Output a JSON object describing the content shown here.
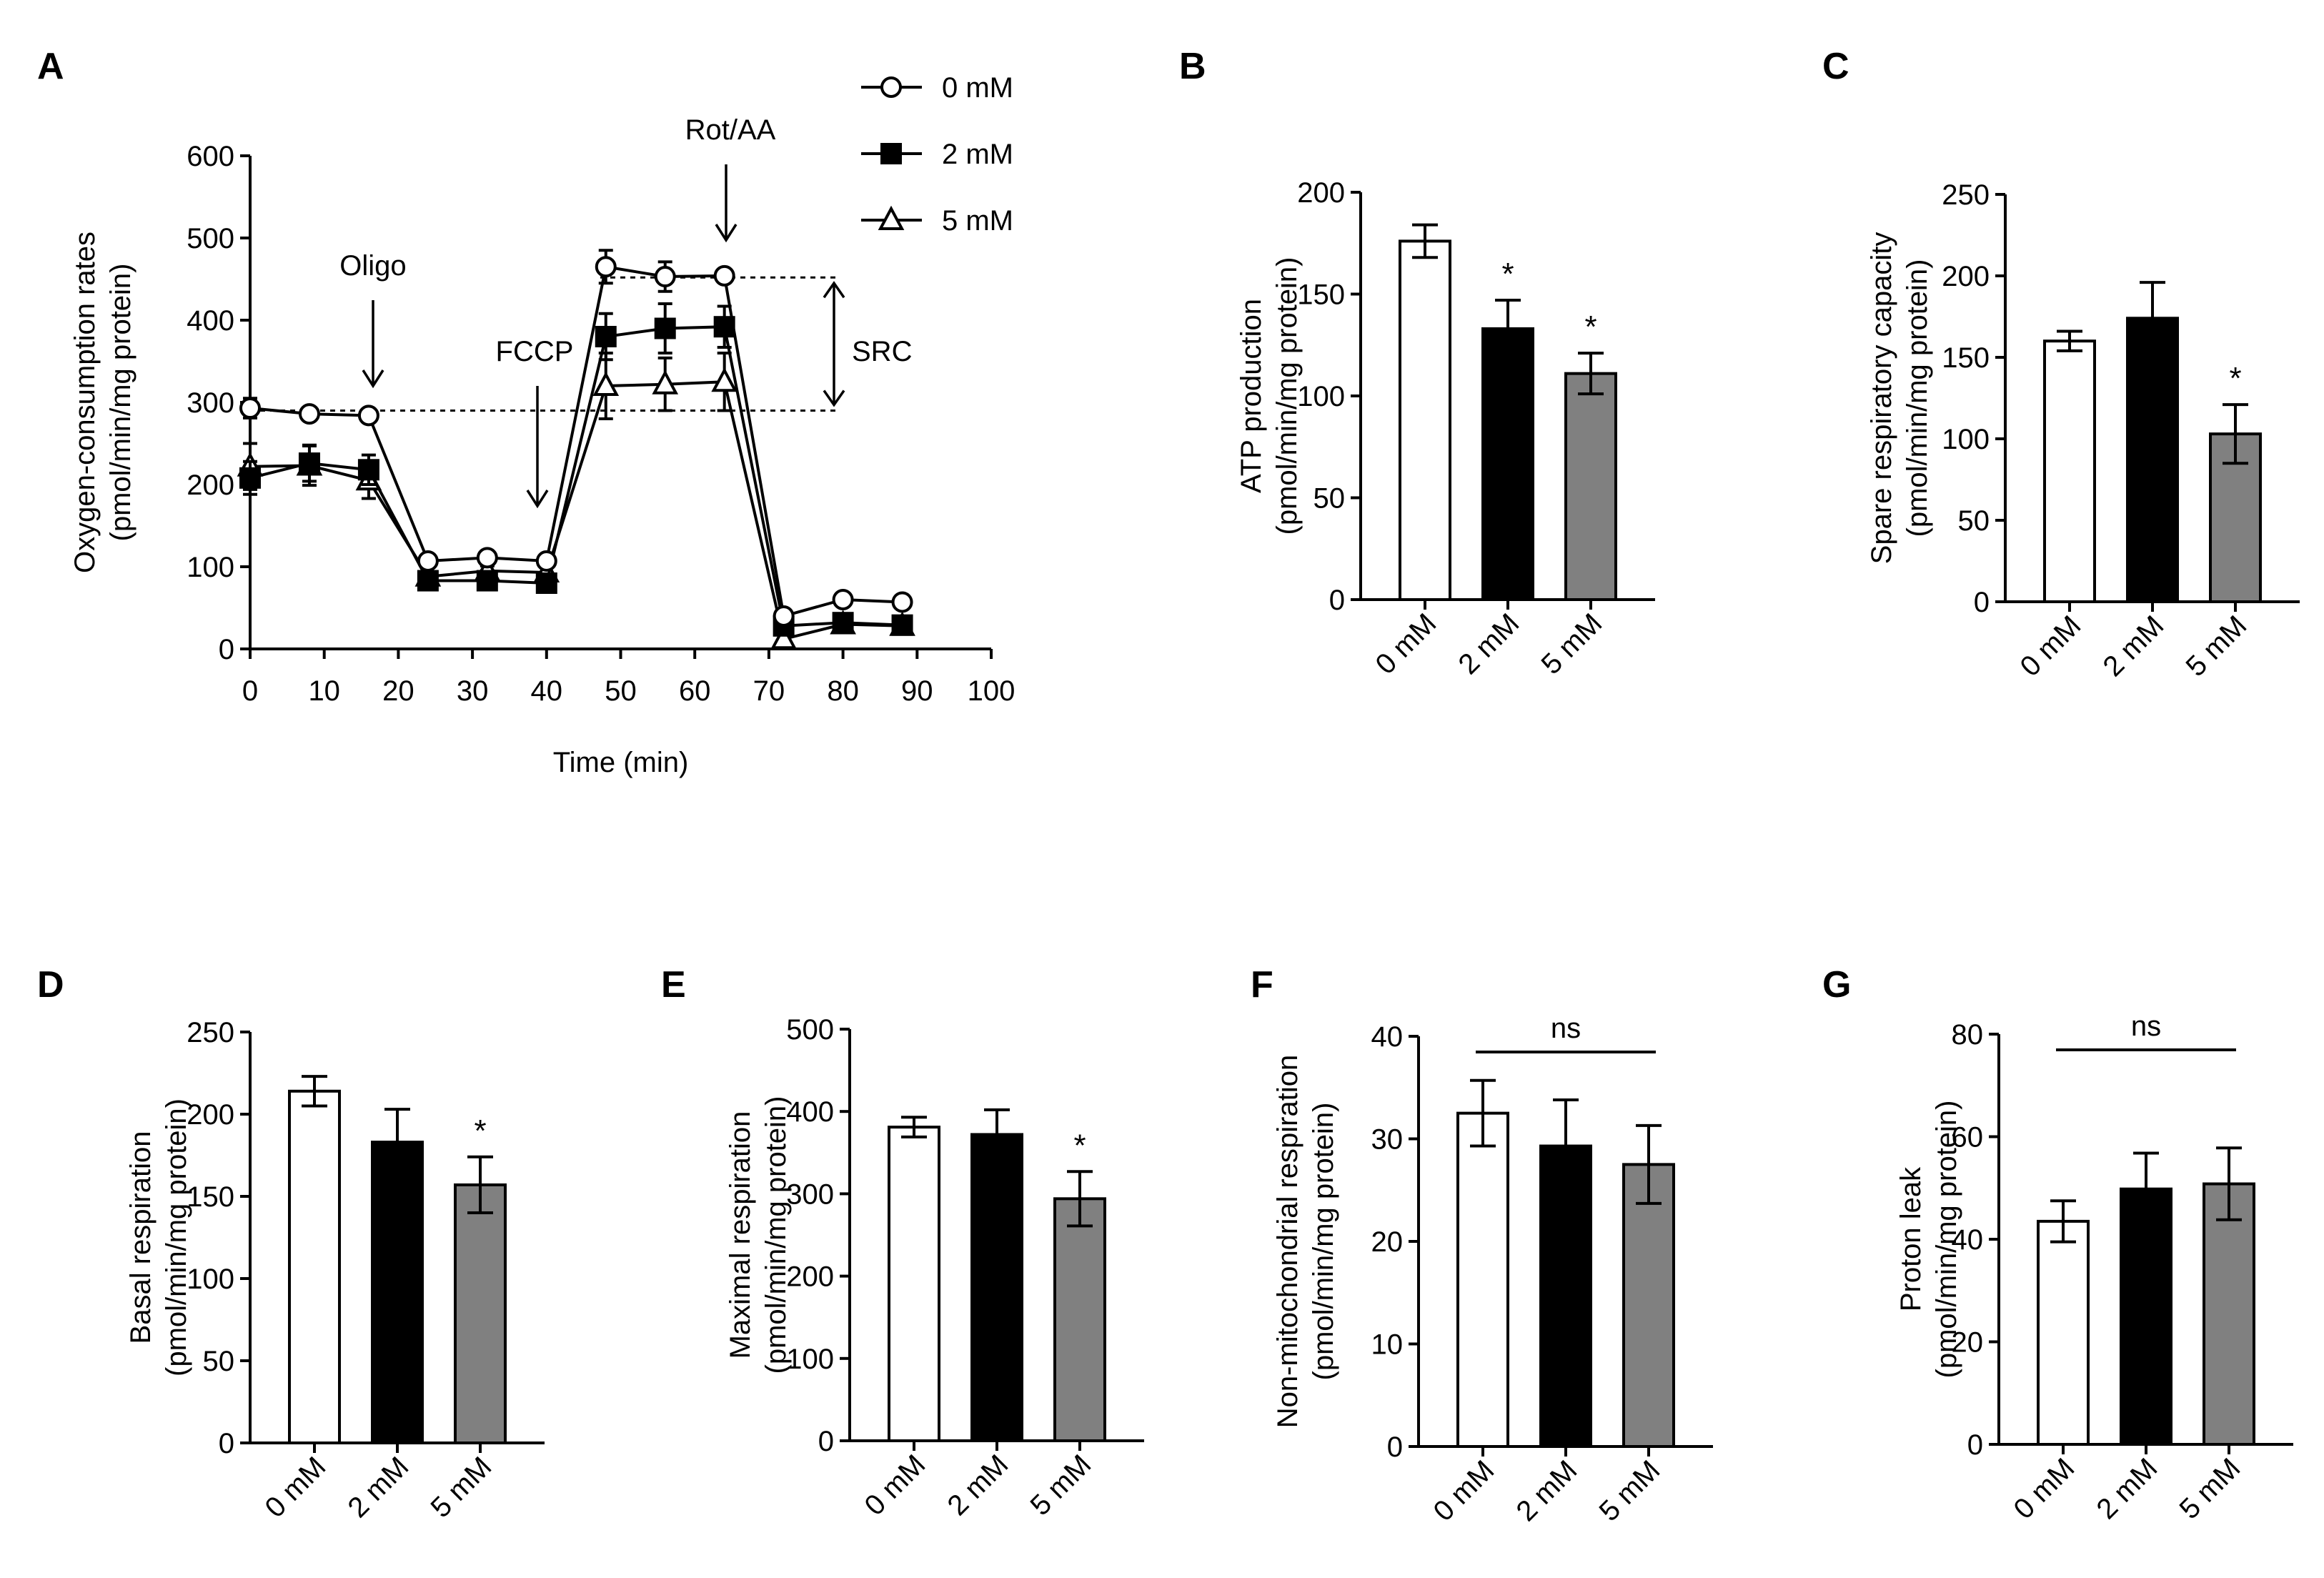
{
  "figure": {
    "series_colors": {
      "0 mM": "#ffffff",
      "2 mM": "#000000",
      "5 mM": "#808080"
    },
    "significance_marker": "*"
  },
  "chart_data": [
    {
      "panel": "A",
      "type": "line",
      "xlabel": "Time (min)",
      "ylabel": [
        "Oxygen-consumption rates",
        "(pmol/min/mg protein)"
      ],
      "xlim": [
        0,
        100
      ],
      "ylim": [
        0,
        600
      ],
      "xticks": [
        0,
        10,
        20,
        30,
        40,
        50,
        60,
        70,
        80,
        90,
        100
      ],
      "yticks": [
        0,
        100,
        200,
        300,
        400,
        500,
        600
      ],
      "legend_position": "top-right",
      "series": [
        {
          "name": "0 mM",
          "marker": "circle-open",
          "x": [
            0,
            8,
            16,
            24,
            32,
            40,
            48,
            56,
            64,
            72,
            80,
            88
          ],
          "y": [
            293,
            286,
            284,
            107,
            111,
            107,
            465,
            453,
            454,
            40,
            60,
            57
          ],
          "err": [
            12,
            6,
            6,
            4,
            4,
            4,
            20,
            18,
            8,
            6,
            5,
            5
          ]
        },
        {
          "name": "2 mM",
          "marker": "square-filled",
          "x": [
            0,
            8,
            16,
            24,
            32,
            40,
            48,
            56,
            64,
            72,
            80,
            88
          ],
          "y": [
            208,
            226,
            218,
            83,
            83,
            80,
            380,
            390,
            392,
            28,
            32,
            29
          ],
          "err": [
            20,
            22,
            18,
            6,
            6,
            6,
            28,
            30,
            25,
            5,
            6,
            5
          ]
        },
        {
          "name": "5 mM",
          "marker": "triangle-open",
          "x": [
            0,
            8,
            16,
            24,
            32,
            40,
            48,
            56,
            64,
            72,
            80,
            88
          ],
          "y": [
            222,
            223,
            205,
            88,
            95,
            93,
            320,
            322,
            325,
            12,
            30,
            28
          ],
          "err": [
            28,
            24,
            22,
            6,
            6,
            6,
            40,
            32,
            35,
            6,
            6,
            5
          ]
        }
      ],
      "annotations": [
        {
          "label": "Oligo",
          "x": 16.5
        },
        {
          "label": "FCCP",
          "x": 39
        },
        {
          "label": "Rot/AA",
          "x": 64
        }
      ],
      "reference_lines": [
        290,
        452
      ],
      "bracket_label": "SRC"
    },
    {
      "panel": "B",
      "type": "bar",
      "ylabel": [
        "ATP production",
        "(pmol/min/mg protein)"
      ],
      "categories": [
        "0 mM",
        "2 mM",
        "5 mM"
      ],
      "values": [
        176,
        133,
        111
      ],
      "errors": [
        8,
        14,
        10
      ],
      "ylim": [
        0,
        200
      ],
      "yticks": [
        0,
        50,
        100,
        150,
        200
      ],
      "significance": [
        "",
        "*",
        "*"
      ]
    },
    {
      "panel": "C",
      "type": "bar",
      "ylabel": [
        "Spare respiratory capacity",
        "(pmol/min/mg protein)"
      ],
      "categories": [
        "0 mM",
        "2 mM",
        "5 mM"
      ],
      "values": [
        160,
        174,
        103
      ],
      "errors": [
        6,
        22,
        18
      ],
      "ylim": [
        0,
        250
      ],
      "yticks": [
        0,
        50,
        100,
        150,
        200,
        250
      ],
      "significance": [
        "",
        "",
        "*"
      ]
    },
    {
      "panel": "D",
      "type": "bar",
      "ylabel": [
        "Basal respiration",
        "(pmol/min/mg protein)"
      ],
      "categories": [
        "0 mM",
        "2 mM",
        "5 mM"
      ],
      "values": [
        214,
        183,
        157
      ],
      "errors": [
        9,
        20,
        17
      ],
      "ylim": [
        0,
        250
      ],
      "yticks": [
        0,
        50,
        100,
        150,
        200,
        250
      ],
      "significance": [
        "",
        "",
        "*"
      ]
    },
    {
      "panel": "E",
      "type": "bar",
      "ylabel": [
        "Maximal respiration",
        "(pmol/min/mg protein)"
      ],
      "categories": [
        "0 mM",
        "2 mM",
        "5 mM"
      ],
      "values": [
        381,
        372,
        294
      ],
      "errors": [
        12,
        30,
        33
      ],
      "ylim": [
        0,
        500
      ],
      "yticks": [
        0,
        100,
        200,
        300,
        400,
        500
      ],
      "significance": [
        "",
        "",
        "*"
      ]
    },
    {
      "panel": "F",
      "type": "bar",
      "ylabel": [
        "Non-mitochondrial respiration",
        "(pmol/min/mg protein)"
      ],
      "categories": [
        "0 mM",
        "2 mM",
        "5 mM"
      ],
      "values": [
        32.5,
        29.3,
        27.5
      ],
      "errors": [
        3.2,
        4.5,
        3.8
      ],
      "ylim": [
        0,
        40
      ],
      "yticks": [
        0,
        10,
        20,
        30,
        40
      ],
      "bracket_label": "ns"
    },
    {
      "panel": "G",
      "type": "bar",
      "ylabel": [
        "Proton leak",
        "(pmol/min/mg protein)"
      ],
      "categories": [
        "0 mM",
        "2 mM",
        "5 mM"
      ],
      "values": [
        43.5,
        49.8,
        50.8
      ],
      "errors": [
        4,
        7,
        7
      ],
      "ylim": [
        0,
        80
      ],
      "yticks": [
        0,
        20,
        40,
        60,
        80
      ],
      "bracket_label": "ns"
    }
  ]
}
